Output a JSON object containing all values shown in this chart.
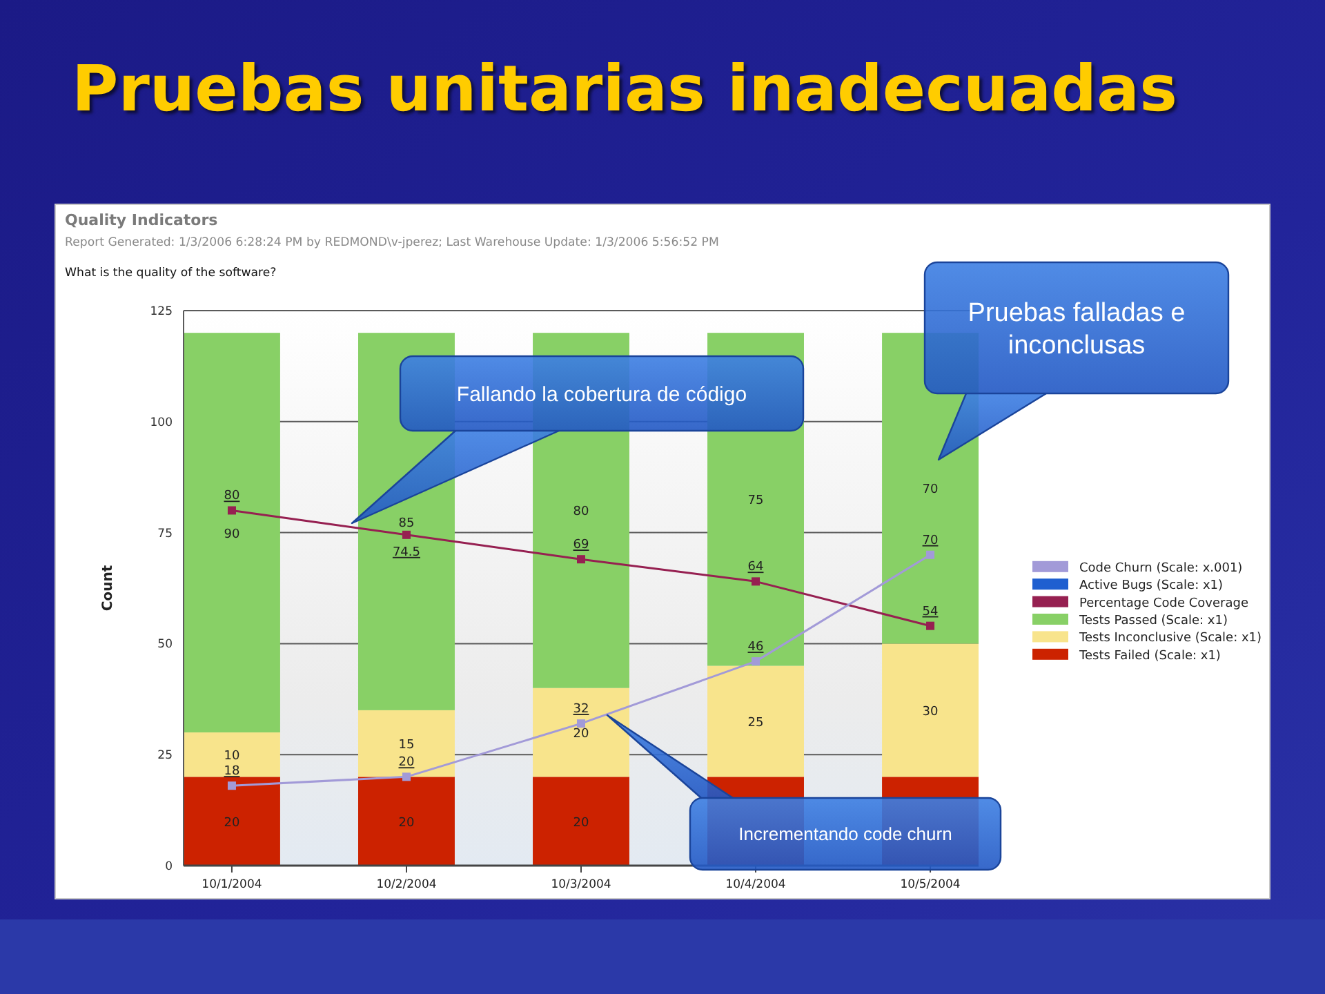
{
  "chart_data": {
    "type": "bar",
    "stacked": true,
    "title": "Pruebas unitarias inadecuadas",
    "subtitle": "Quality Indicators",
    "ylabel": "Count",
    "categories": [
      "10/1/2004",
      "10/2/2004",
      "10/3/2004",
      "10/4/2004",
      "10/5/2004"
    ],
    "series": [
      {
        "name": "Tests Failed (Scale: x1)",
        "type": "bar",
        "color": "#cc2200",
        "values": [
          20,
          20,
          20,
          20,
          20
        ],
        "value_labels": [
          "20",
          "20",
          "20",
          null,
          null
        ]
      },
      {
        "name": "Tests Inconclusive (Scale: x1)",
        "type": "bar",
        "color": "#f8e48c",
        "values": [
          10,
          15,
          20,
          25,
          30
        ],
        "value_labels": [
          "10",
          "15",
          "20",
          "25",
          "30"
        ]
      },
      {
        "name": "Tests Passed (Scale: x1)",
        "type": "bar",
        "color": "#88d066",
        "values": [
          90,
          85,
          80,
          75,
          70
        ],
        "value_labels": [
          "90",
          "85",
          "80",
          "75",
          "70"
        ]
      },
      {
        "name": "Percentage Code Coverage",
        "type": "line",
        "color": "#962051",
        "values": [
          80,
          74.5,
          69,
          64,
          54
        ],
        "value_labels": [
          "80",
          "74.5",
          "69",
          "64",
          "54"
        ]
      },
      {
        "name": "Active Bugs (Scale: x1)",
        "type": "line",
        "color": "#1f5fd0",
        "values": [
          null,
          null,
          null,
          null,
          null
        ]
      },
      {
        "name": "Code Churn (Scale: x.001)",
        "type": "line",
        "color": "#a29ad8",
        "values": [
          18,
          20,
          32,
          46,
          70
        ],
        "value_labels": [
          "18",
          "20",
          "32",
          "46",
          "70"
        ]
      }
    ],
    "ylim": [
      0,
      125
    ],
    "yticks": [
      0,
      25,
      50,
      75,
      100,
      125
    ],
    "grid": "y",
    "legend": "right",
    "marker": "square",
    "line_style": "solid",
    "annotations": [
      "Report Generated: 1/3/2006 6:28:24 PM by REDMOND\\v-jperez; Last Warehouse Update: 1/3/2006 5:56:52 PM",
      "What is the quality of the software?",
      "Fallando la cobertura de código",
      "Pruebas falladas e inconclusas",
      "Incrementando code churn"
    ]
  }
}
